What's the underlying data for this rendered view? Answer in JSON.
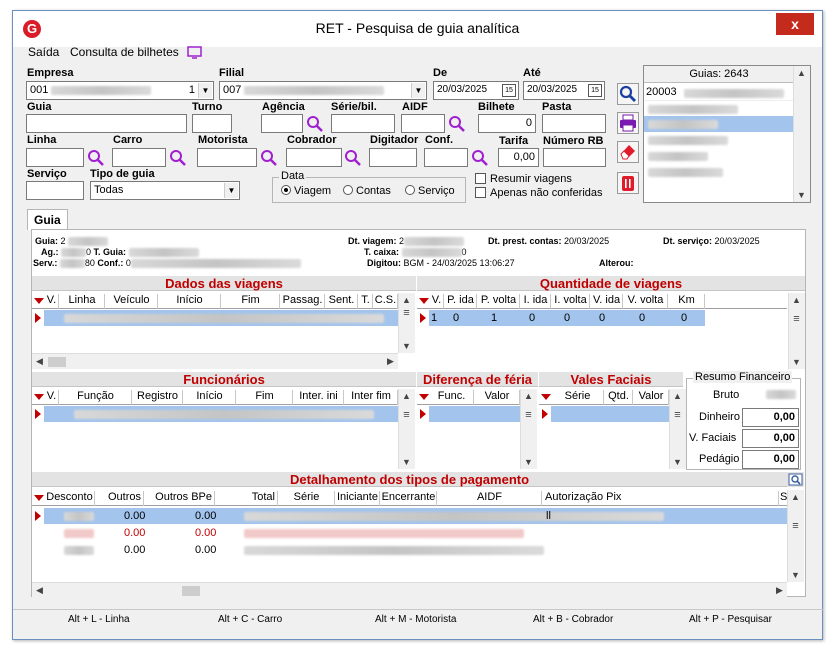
{
  "window": {
    "title": "RET - Pesquisa de guia analítica",
    "close": "x",
    "logo": "G"
  },
  "menu": {
    "exit": "Saída",
    "tickets": "Consulta de bilhetes"
  },
  "form": {
    "empresa": {
      "label": "Empresa",
      "value": "001"
    },
    "filial": {
      "label": "Filial",
      "value": "007"
    },
    "de": {
      "label": "De",
      "value": "20/03/2025"
    },
    "ate": {
      "label": "Até",
      "value": "20/03/2025"
    },
    "cal_icon": "15",
    "guia": "Guia",
    "turno": "Turno",
    "agencia": "Agência",
    "serie_bil": "Série/bil.",
    "aidf": "AIDF",
    "bilhete": {
      "label": "Bilhete",
      "value": "0"
    },
    "pasta": "Pasta",
    "linha": "Linha",
    "carro": "Carro",
    "motorista": "Motorista",
    "cobrador": "Cobrador",
    "digitador": "Digitador",
    "conf": "Conf.",
    "tarifa": {
      "label": "Tarifa",
      "value": "0,00"
    },
    "numero_rb": "Número RB",
    "servico": "Serviço",
    "tipo_guia": {
      "label": "Tipo de guia",
      "value": "Todas"
    },
    "data_group": {
      "title": "Data",
      "options": [
        "Viagem",
        "Contas",
        "Serviço"
      ]
    },
    "resumir": "Resumir viagens",
    "apenas": "Apenas não conferidas"
  },
  "guias": {
    "header": "Guias: 2643",
    "first": "20003"
  },
  "tabs": {
    "guia": "Guia"
  },
  "info": {
    "guia": "Guia:",
    "guia_v": "2",
    "ag": "Ag.:",
    "ag_v": "0",
    "t_guia": "T. Guia:",
    "serv": "Serv.:",
    "serv_v": "80",
    "conf": "Conf.:",
    "conf_v": "0",
    "dt_viagem": "Dt. viagem:",
    "dt_viagem_v": "2",
    "t_caixa": "T. caixa:",
    "t_caixa_v": "0",
    "digitou": "Digitou:",
    "digitou_v": "BGM - 24/03/2025 13:06:27",
    "dt_prest": "Dt. prest. contas:",
    "dt_prest_v": "20/03/2025",
    "alterou": "Alterou:",
    "dt_serv": "Dt. serviço:",
    "dt_serv_v": "20/03/2025"
  },
  "viagens": {
    "title": "Dados das viagens",
    "cols": [
      "V.",
      "Linha",
      "Veículo",
      "Início",
      "Fim",
      "Passag.",
      "Sent.",
      "T.",
      "C.S."
    ]
  },
  "quantidade": {
    "title": "Quantidade de viagens",
    "cols": [
      "V.",
      "P. ida",
      "P. volta",
      "I. ida",
      "I. volta",
      "V. ida",
      "V. volta",
      "Km"
    ],
    "row": [
      "1",
      "0",
      "1",
      "0",
      "0",
      "0",
      "0",
      "0"
    ]
  },
  "funcionarios": {
    "title": "Funcionários",
    "cols": [
      "V.",
      "Função",
      "Registro",
      "Início",
      "Fim",
      "Inter. ini",
      "Inter fim"
    ]
  },
  "diferenca": {
    "title": "Diferença de féria",
    "cols": [
      "Func.",
      "Valor"
    ]
  },
  "vales": {
    "title": "Vales Faciais",
    "cols": [
      "Série",
      "Qtd.",
      "Valor"
    ]
  },
  "resumo": {
    "title": "Resumo Financeiro",
    "bruto": "Bruto",
    "dinheiro": {
      "label": "Dinheiro",
      "value": "0,00"
    },
    "vfaciais": {
      "label": "V. Faciais",
      "value": "0,00"
    },
    "pedagio": {
      "label": "Pedágio",
      "value": "0,00"
    }
  },
  "pagamento": {
    "title": "Detalhamento dos tipos de pagamento",
    "cols": [
      "Desconto",
      "Outros",
      "Outros BPe",
      "Total",
      "Série",
      "Iniciante",
      "Encerrante",
      "AIDF",
      "Autorização Pix",
      "S"
    ],
    "rows": [
      {
        "outros": "0.00",
        "outros_bpe": "0.00",
        "pix": "ll"
      },
      {
        "outros": "0.00",
        "outros_bpe": "0.00",
        "pix": ""
      },
      {
        "outros": "0.00",
        "outros_bpe": "0.00",
        "pix": ""
      }
    ],
    "colors": {
      "normal": "#000000",
      "red": "#c00000"
    }
  },
  "shortcuts": [
    "Alt + L - Linha",
    "Alt + C - Carro",
    "Alt + M - Motorista",
    "Alt + B - Cobrador",
    "Alt + P - Pesquisar"
  ]
}
